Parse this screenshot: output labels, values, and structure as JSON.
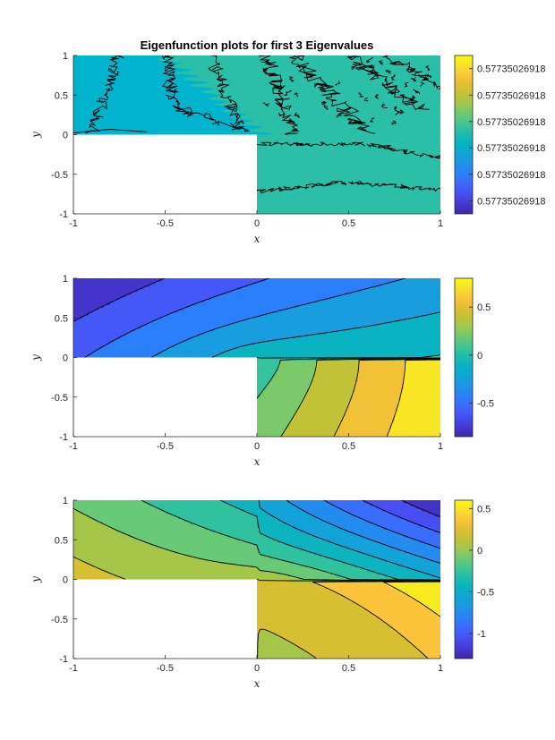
{
  "chart_data": [
    {
      "type": "contour",
      "title": "Eigenfunction plots for first 3 Eigenvalues",
      "xlabel": "x",
      "ylabel": "y",
      "xlim": [
        -1,
        1
      ],
      "ylim": [
        -1,
        1
      ],
      "xticks": [
        "-1",
        "-0.5",
        "0",
        "0.5",
        "1"
      ],
      "yticks": [
        "1",
        "0.5",
        "0",
        "-0.5",
        "-1"
      ],
      "domain": "L-shaped region: [-1,1]x[-1,1] minus [-1,0)x[-1,0)",
      "field": "constant",
      "colors": [
        "#00b4cd",
        "#2bbfa8"
      ],
      "colorbar": {
        "range": [
          0,
          1
        ],
        "ticks": [
          {
            "value": 0.917,
            "label": "0.57735026918"
          },
          {
            "value": 0.75,
            "label": "0.57735026918"
          },
          {
            "value": 0.583,
            "label": "0.57735026918"
          },
          {
            "value": 0.417,
            "label": "0.57735026918"
          },
          {
            "value": 0.25,
            "label": "0.57735026918"
          },
          {
            "value": 0.083,
            "label": "0.57735026918"
          }
        ]
      }
    },
    {
      "type": "contour",
      "title": "",
      "xlabel": "x",
      "ylabel": "y",
      "xlim": [
        -1,
        1
      ],
      "ylim": [
        -1,
        1
      ],
      "xticks": [
        "-1",
        "-0.5",
        "0",
        "0.5",
        "1"
      ],
      "yticks": [
        "1",
        "0.5",
        "0",
        "-0.5",
        "-1"
      ],
      "domain": "L-shaped region: [-1,1]x[-1,1] minus [-1,0)x[-1,0)",
      "field": "second_eigenfunction",
      "levels": 10,
      "colorbar": {
        "range": [
          -0.85,
          0.8
        ],
        "ticks": [
          {
            "value": 0.5,
            "label": "0.5"
          },
          {
            "value": 0,
            "label": "0"
          },
          {
            "value": -0.5,
            "label": "-0.5"
          }
        ]
      }
    },
    {
      "type": "contour",
      "title": "",
      "xlabel": "x",
      "ylabel": "y",
      "xlim": [
        -1,
        1
      ],
      "ylim": [
        -1,
        1
      ],
      "xticks": [
        "-1",
        "-0.5",
        "0",
        "0.5",
        "1"
      ],
      "yticks": [
        "1",
        "0.5",
        "0",
        "-0.5",
        "-1"
      ],
      "domain": "L-shaped region: [-1,1]x[-1,1] minus [-1,0)x[-1,0)",
      "field": "third_eigenfunction",
      "levels": 12,
      "colorbar": {
        "range": [
          -1.3,
          0.6
        ],
        "ticks": [
          {
            "value": 0.5,
            "label": "0.5"
          },
          {
            "value": 0,
            "label": "0"
          },
          {
            "value": -0.5,
            "label": "-0.5"
          },
          {
            "value": -1,
            "label": "-1"
          }
        ]
      }
    }
  ]
}
